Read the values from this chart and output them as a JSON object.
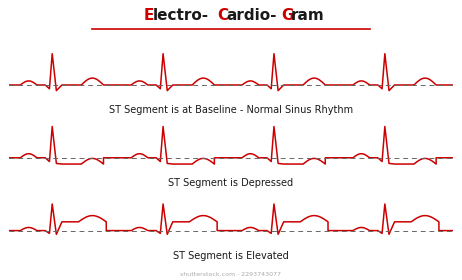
{
  "title_parts": [
    [
      "E",
      "#cc0000"
    ],
    [
      "lectro-",
      "#1a1a1a"
    ],
    [
      "C",
      "#cc0000"
    ],
    [
      "ardio-",
      "#1a1a1a"
    ],
    [
      "G",
      "#cc0000"
    ],
    [
      "ram",
      "#1a1a1a"
    ]
  ],
  "title_fontsize": 11,
  "title_bold": true,
  "underline_color": "#cc0000",
  "ecg_color": "#cc0000",
  "baseline_color": "#666666",
  "bg_color": "#ffffff",
  "label1": "ST Segment is at Baseline - Normal Sinus Rhythm",
  "label2": "ST Segment is Depressed",
  "label3": "ST Segment is Elevated",
  "label_fontsize": 7.0,
  "watermark": "shutterstock.com · 2293743077",
  "watermark_fontsize": 4.5,
  "n_beats": 4,
  "ecg_lw": 1.1
}
